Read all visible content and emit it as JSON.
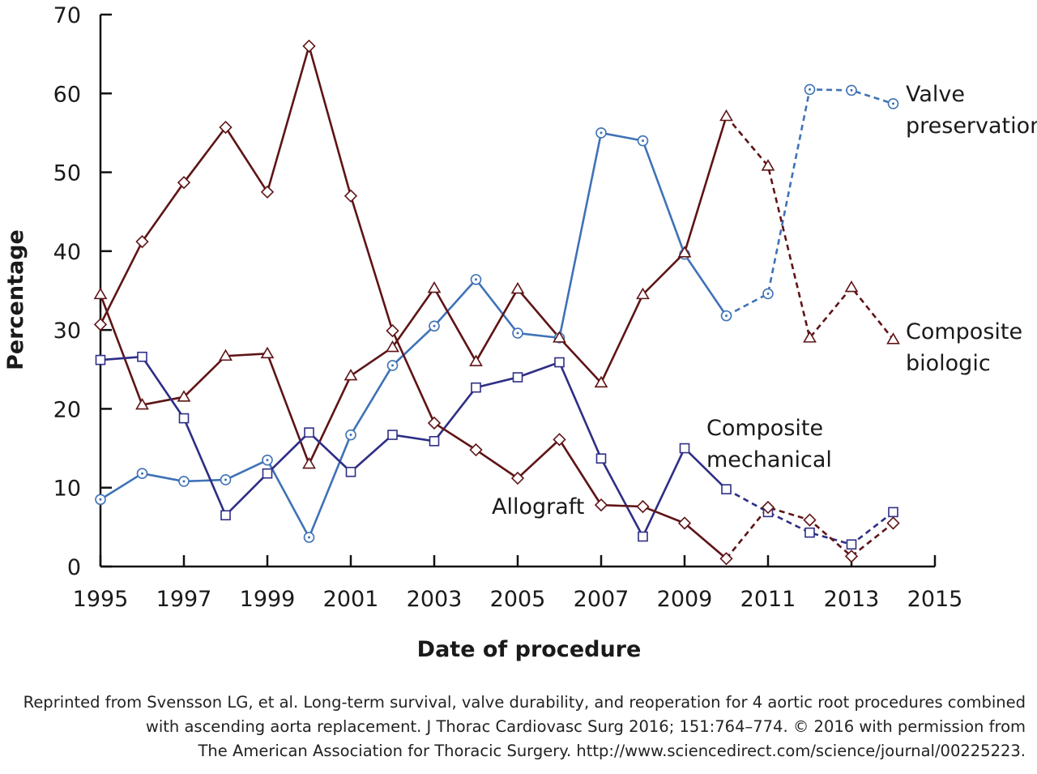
{
  "chart_data": {
    "type": "line",
    "xlabel": "Date of procedure",
    "ylabel": "Percentage",
    "xlim": [
      1995,
      2015
    ],
    "ylim": [
      0,
      70
    ],
    "xticks": [
      1995,
      1997,
      1999,
      2001,
      2003,
      2005,
      2007,
      2009,
      2011,
      2013,
      2015
    ],
    "yticks": [
      0,
      10,
      20,
      30,
      40,
      50,
      60,
      70
    ],
    "x": [
      1995,
      1996,
      1997,
      1998,
      1999,
      2000,
      2001,
      2002,
      2003,
      2004,
      2005,
      2006,
      2007,
      2008,
      2009,
      2010,
      2011,
      2012,
      2013,
      2014
    ],
    "solid_until": 2010,
    "series": [
      {
        "name": "Valve preservation",
        "label_lines": [
          "Valve",
          "preservation"
        ],
        "color": "#3f72b6",
        "marker": "circle",
        "values": [
          8.5,
          11.8,
          10.8,
          11.0,
          13.5,
          3.7,
          16.7,
          25.5,
          30.5,
          36.4,
          29.6,
          29.0,
          55.0,
          54.0,
          39.6,
          31.8,
          34.6,
          60.5,
          60.4,
          58.7
        ]
      },
      {
        "name": "Composite biologic",
        "label_lines": [
          "Composite",
          "biologic"
        ],
        "color": "#5e1416",
        "marker": "triangle",
        "values": [
          34.5,
          20.5,
          21.5,
          26.7,
          27.0,
          13.0,
          24.2,
          27.8,
          35.3,
          26.0,
          35.2,
          29.0,
          23.3,
          34.5,
          39.8,
          57.1,
          50.8,
          29.0,
          35.4,
          28.8
        ]
      },
      {
        "name": "Composite mechanical",
        "label_lines": [
          "Composite",
          "mechanical"
        ],
        "color": "#2e2e86",
        "marker": "square",
        "values": [
          26.2,
          26.6,
          18.8,
          6.5,
          11.8,
          17.0,
          12.0,
          16.7,
          15.9,
          22.7,
          24.0,
          25.9,
          13.7,
          3.8,
          15.0,
          9.8,
          6.9,
          4.3,
          2.8,
          6.9
        ]
      },
      {
        "name": "Allograft",
        "label_lines": [
          "Allograft"
        ],
        "color": "#5e1416",
        "marker": "diamond",
        "values": [
          30.7,
          41.2,
          48.7,
          55.7,
          47.5,
          66.0,
          47.0,
          29.9,
          18.2,
          14.8,
          11.2,
          16.1,
          7.8,
          7.6,
          5.5,
          1.0,
          7.5,
          5.9,
          1.3,
          5.5
        ]
      }
    ]
  },
  "caption": {
    "line1": "Reprinted from Svensson LG, et al. Long-term survival, valve durability, and reoperation for 4 aortic root procedures combined",
    "line2": "with ascending aorta replacement. J Thorac Cardiovasc Surg 2016; 151:764–774. © 2016 with permission from",
    "line3": "The American Association for Thoracic Surgery. http://www.sciencedirect.com/science/journal/00225223."
  }
}
